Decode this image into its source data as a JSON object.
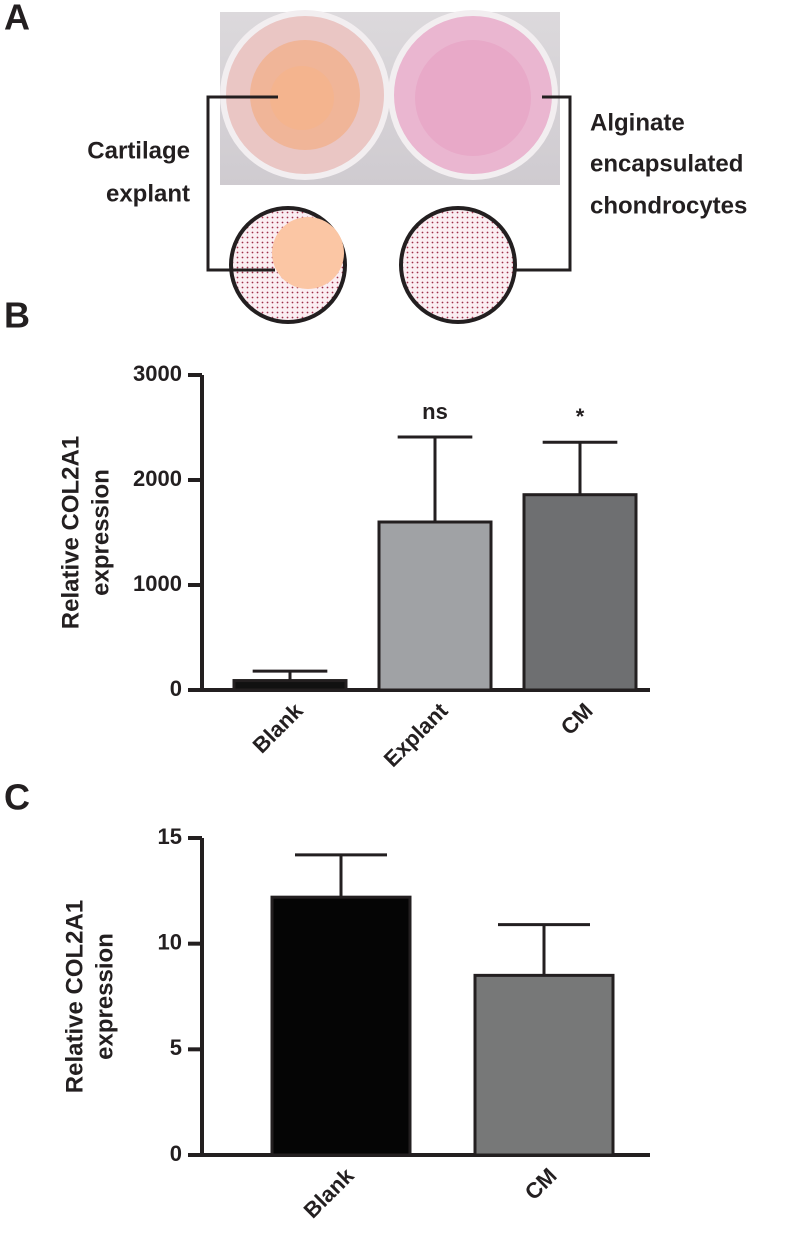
{
  "panel_labels": [
    "A",
    "B",
    "C"
  ],
  "panel_a": {
    "left_label": [
      "Cartilage",
      "explant"
    ],
    "right_label": [
      "Alginate",
      "encapsulated",
      "chondrocytes"
    ]
  },
  "chart_data": [
    {
      "type": "bar",
      "y_label": [
        "Relative COL2A1",
        "expression"
      ],
      "categories": [
        "Blank",
        "Explant",
        "CM"
      ],
      "values": [
        90,
        1600,
        1860
      ],
      "errors": [
        90,
        810,
        500
      ],
      "colors": [
        "#111111",
        "#a0a2a5",
        "#6e6f71"
      ],
      "annotations": [
        null,
        "ns",
        "*"
      ],
      "ylim": [
        0,
        3000
      ],
      "yticks": [
        0,
        1000,
        2000,
        3000
      ]
    },
    {
      "type": "bar",
      "y_label": [
        "Relative COL2A1",
        "expression"
      ],
      "categories": [
        "Blank",
        "CM"
      ],
      "values": [
        12.2,
        8.5
      ],
      "errors": [
        2.0,
        2.4
      ],
      "colors": [
        "#050505",
        "#777878"
      ],
      "ylim": [
        0,
        15
      ],
      "yticks": [
        0,
        5,
        10,
        15
      ]
    }
  ]
}
